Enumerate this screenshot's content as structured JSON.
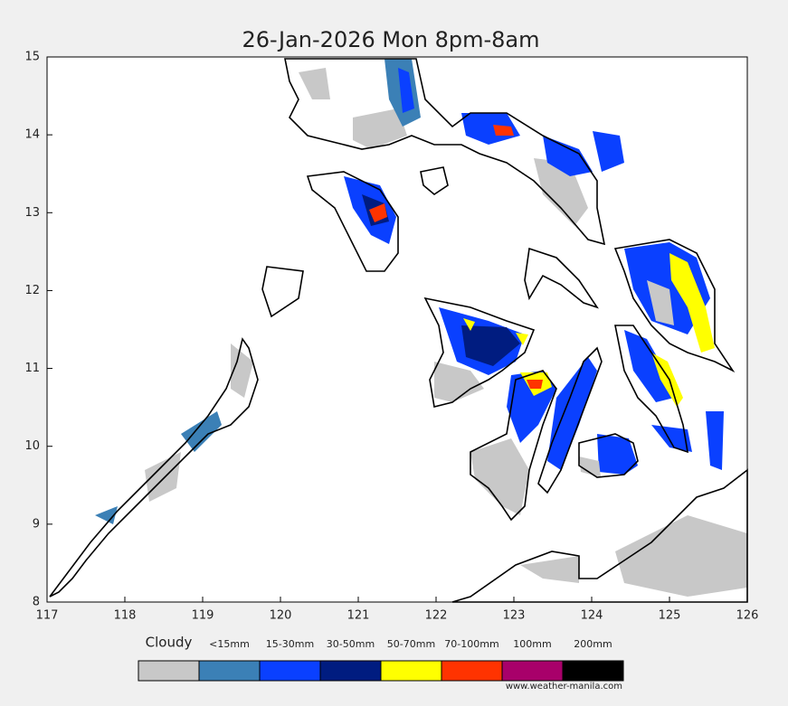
{
  "title": "26-Jan-2026 Mon 8pm-8am",
  "map": {
    "xlim": [
      117,
      126
    ],
    "ylim": [
      8,
      15
    ],
    "xticks": [
      117,
      118,
      119,
      120,
      121,
      122,
      123,
      124,
      125,
      126
    ],
    "yticks": [
      8,
      9,
      10,
      11,
      12,
      13,
      14,
      15
    ]
  },
  "legend": [
    {
      "label": "Cloudy",
      "color": "#c8c8c8"
    },
    {
      "label": "<15mm",
      "color": "#3b80b6"
    },
    {
      "label": "15-30mm",
      "color": "#0a40ff"
    },
    {
      "label": "30-50mm",
      "color": "#001c80"
    },
    {
      "label": "50-70mm",
      "color": "#ffff00"
    },
    {
      "label": "70-100mm",
      "color": "#ff3300"
    },
    {
      "label": "100mm",
      "color": "#a8006a"
    },
    {
      "label": "200mm",
      "color": "#000000"
    }
  ],
  "credit": "www.weather-manila.com"
}
